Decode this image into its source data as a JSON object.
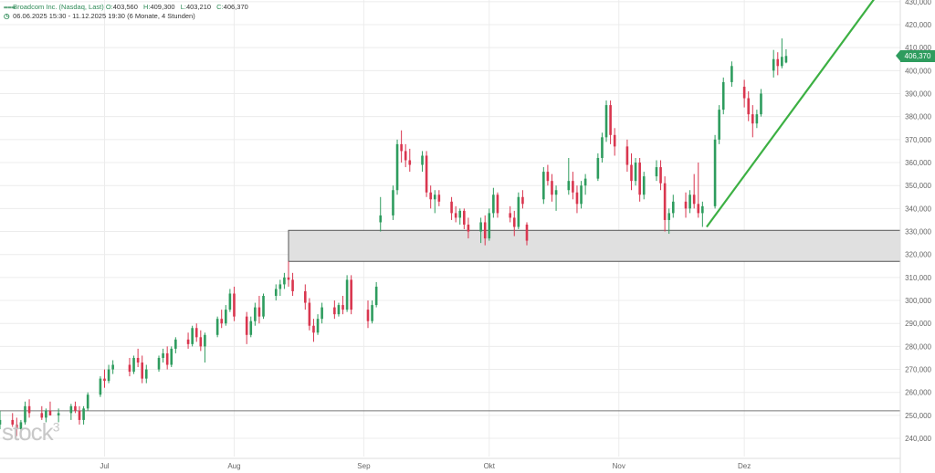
{
  "header": {
    "symbol_icon": "chart-symbol-icon",
    "instrument": "Broadcom Inc. (Nasdaq, Last)",
    "open_label": "O:",
    "open": "403,560",
    "high_label": "H:",
    "high": "409,300",
    "low_label": "L:",
    "low": "403,210",
    "close_label": "C:",
    "close": "406,370",
    "clock_icon": "clock-icon",
    "range": "06.06.2025 15:30 - 11.12.2025 19:30",
    "interval": "(6 Monate, 4 Stunden)"
  },
  "watermark": {
    "text": "stock",
    "sup": "3"
  },
  "price_badge": "406,370",
  "colors": {
    "up": "#2e9c5e",
    "down": "#d9364f",
    "trend": "#3cb043",
    "zone_fill": "#e0e0e0",
    "zone_stroke": "#555555",
    "grid": "#ececec"
  },
  "chart_data": {
    "type": "candlestick",
    "ylim": [
      235,
      430
    ],
    "y_ticks": [
      {
        "v": 240,
        "label": "240,000"
      },
      {
        "v": 250,
        "label": "250,000"
      },
      {
        "v": 260,
        "label": "260,000"
      },
      {
        "v": 270,
        "label": "270,000"
      },
      {
        "v": 280,
        "label": "280,000"
      },
      {
        "v": 290,
        "label": "290,000"
      },
      {
        "v": 300,
        "label": "300,000"
      },
      {
        "v": 310,
        "label": "310,000"
      },
      {
        "v": 320,
        "label": "320,000"
      },
      {
        "v": 330,
        "label": "330,000"
      },
      {
        "v": 340,
        "label": "340,000"
      },
      {
        "v": 350,
        "label": "350,000"
      },
      {
        "v": 360,
        "label": "360,000"
      },
      {
        "v": 370,
        "label": "370,000"
      },
      {
        "v": 380,
        "label": "380,000"
      },
      {
        "v": 390,
        "label": "390,000"
      },
      {
        "v": 400,
        "label": "400,000"
      },
      {
        "v": 410,
        "label": "410,000"
      },
      {
        "v": 420,
        "label": "420,000"
      },
      {
        "v": 430,
        "label": "430,000"
      }
    ],
    "x_ticks": [
      {
        "label": "Jul",
        "date": "2025-07-01"
      },
      {
        "label": "Aug",
        "date": "2025-08-01"
      },
      {
        "label": "Sep",
        "date": "2025-09-01"
      },
      {
        "label": "Okt",
        "date": "2025-10-01"
      },
      {
        "label": "Nov",
        "date": "2025-11-01"
      },
      {
        "label": "Dez",
        "date": "2025-12-01"
      }
    ],
    "x_range": [
      "2025-06-06",
      "2026-01-06"
    ],
    "last_price": 406.37,
    "zone": {
      "from": "2025-08-14",
      "to_right_edge": true,
      "y_low": 317,
      "y_high": 330.5
    },
    "support_line": {
      "y": 252
    },
    "trend_line": {
      "from": {
        "date": "2025-11-22",
        "y": 332
      },
      "to": {
        "date": "2026-01-01",
        "y": 431
      }
    },
    "candles": [
      {
        "d": "2025-06-06",
        "o": 246,
        "h": 252,
        "l": 244,
        "c": 248
      },
      {
        "d": "2025-06-09",
        "o": 248,
        "h": 251,
        "l": 245,
        "c": 246
      },
      {
        "d": "2025-06-10",
        "o": 246,
        "h": 249,
        "l": 241,
        "c": 244
      },
      {
        "d": "2025-06-11",
        "o": 244,
        "h": 248,
        "l": 241,
        "c": 247
      },
      {
        "d": "2025-06-12",
        "o": 247,
        "h": 256,
        "l": 246,
        "c": 254
      },
      {
        "d": "2025-06-13",
        "o": 254,
        "h": 257,
        "l": 249,
        "c": 251
      },
      {
        "d": "2025-06-16",
        "o": 251,
        "h": 254,
        "l": 248,
        "c": 249
      },
      {
        "d": "2025-06-17",
        "o": 249,
        "h": 253,
        "l": 247,
        "c": 252
      },
      {
        "d": "2025-06-18",
        "o": 252,
        "h": 256,
        "l": 250,
        "c": 250
      },
      {
        "d": "2025-06-20",
        "o": 250,
        "h": 253,
        "l": 247,
        "c": 251
      },
      {
        "d": "2025-06-23",
        "o": 251,
        "h": 255,
        "l": 248,
        "c": 254
      },
      {
        "d": "2025-06-24",
        "o": 254,
        "h": 256,
        "l": 251,
        "c": 252
      },
      {
        "d": "2025-06-25",
        "o": 252,
        "h": 254,
        "l": 246,
        "c": 248
      },
      {
        "d": "2025-06-26",
        "o": 248,
        "h": 254,
        "l": 246,
        "c": 253
      },
      {
        "d": "2025-06-27",
        "o": 253,
        "h": 260,
        "l": 252,
        "c": 259
      },
      {
        "d": "2025-06-30",
        "o": 259,
        "h": 267,
        "l": 258,
        "c": 266
      },
      {
        "d": "2025-07-01",
        "o": 266,
        "h": 270,
        "l": 262,
        "c": 265
      },
      {
        "d": "2025-07-02",
        "o": 265,
        "h": 272,
        "l": 264,
        "c": 270
      },
      {
        "d": "2025-07-03",
        "o": 270,
        "h": 274,
        "l": 268,
        "c": 272
      },
      {
        "d": "2025-07-07",
        "o": 272,
        "h": 275,
        "l": 267,
        "c": 269
      },
      {
        "d": "2025-07-08",
        "o": 269,
        "h": 276,
        "l": 268,
        "c": 275
      },
      {
        "d": "2025-07-09",
        "o": 275,
        "h": 279,
        "l": 271,
        "c": 273
      },
      {
        "d": "2025-07-10",
        "o": 273,
        "h": 276,
        "l": 264,
        "c": 266
      },
      {
        "d": "2025-07-11",
        "o": 266,
        "h": 272,
        "l": 264,
        "c": 270
      },
      {
        "d": "2025-07-14",
        "o": 270,
        "h": 276,
        "l": 269,
        "c": 275
      },
      {
        "d": "2025-07-15",
        "o": 275,
        "h": 279,
        "l": 273,
        "c": 277
      },
      {
        "d": "2025-07-16",
        "o": 277,
        "h": 280,
        "l": 270,
        "c": 272
      },
      {
        "d": "2025-07-17",
        "o": 272,
        "h": 280,
        "l": 271,
        "c": 279
      },
      {
        "d": "2025-07-18",
        "o": 279,
        "h": 284,
        "l": 277,
        "c": 283
      },
      {
        "d": "2025-07-21",
        "o": 283,
        "h": 286,
        "l": 279,
        "c": 281
      },
      {
        "d": "2025-07-22",
        "o": 281,
        "h": 289,
        "l": 280,
        "c": 288
      },
      {
        "d": "2025-07-23",
        "o": 288,
        "h": 290,
        "l": 282,
        "c": 284
      },
      {
        "d": "2025-07-24",
        "o": 284,
        "h": 287,
        "l": 278,
        "c": 280
      },
      {
        "d": "2025-07-25",
        "o": 280,
        "h": 286,
        "l": 273,
        "c": 285
      },
      {
        "d": "2025-07-28",
        "o": 285,
        "h": 293,
        "l": 284,
        "c": 292
      },
      {
        "d": "2025-07-29",
        "o": 292,
        "h": 296,
        "l": 288,
        "c": 290
      },
      {
        "d": "2025-07-30",
        "o": 290,
        "h": 298,
        "l": 289,
        "c": 296
      },
      {
        "d": "2025-07-31",
        "o": 296,
        "h": 305,
        "l": 295,
        "c": 303
      },
      {
        "d": "2025-08-01",
        "o": 303,
        "h": 306,
        "l": 291,
        "c": 293
      },
      {
        "d": "2025-08-04",
        "o": 293,
        "h": 295,
        "l": 281,
        "c": 285
      },
      {
        "d": "2025-08-05",
        "o": 285,
        "h": 293,
        "l": 284,
        "c": 291
      },
      {
        "d": "2025-08-06",
        "o": 291,
        "h": 299,
        "l": 289,
        "c": 297
      },
      {
        "d": "2025-08-07",
        "o": 297,
        "h": 302,
        "l": 290,
        "c": 293
      },
      {
        "d": "2025-08-08",
        "o": 293,
        "h": 303,
        "l": 292,
        "c": 302
      },
      {
        "d": "2025-08-11",
        "o": 302,
        "h": 307,
        "l": 300,
        "c": 305
      },
      {
        "d": "2025-08-12",
        "o": 305,
        "h": 309,
        "l": 302,
        "c": 307
      },
      {
        "d": "2025-08-13",
        "o": 307,
        "h": 312,
        "l": 305,
        "c": 310
      },
      {
        "d": "2025-08-14",
        "o": 310,
        "h": 317,
        "l": 306,
        "c": 309
      },
      {
        "d": "2025-08-15",
        "o": 309,
        "h": 312,
        "l": 302,
        "c": 304
      },
      {
        "d": "2025-08-18",
        "o": 304,
        "h": 307,
        "l": 296,
        "c": 299
      },
      {
        "d": "2025-08-19",
        "o": 299,
        "h": 301,
        "l": 287,
        "c": 289
      },
      {
        "d": "2025-08-20",
        "o": 289,
        "h": 292,
        "l": 282,
        "c": 286
      },
      {
        "d": "2025-08-21",
        "o": 286,
        "h": 294,
        "l": 285,
        "c": 292
      },
      {
        "d": "2025-08-22",
        "o": 292,
        "h": 299,
        "l": 290,
        "c": 297
      },
      {
        "d": "2025-08-25",
        "o": 297,
        "h": 300,
        "l": 292,
        "c": 294
      },
      {
        "d": "2025-08-26",
        "o": 294,
        "h": 299,
        "l": 293,
        "c": 298
      },
      {
        "d": "2025-08-27",
        "o": 298,
        "h": 302,
        "l": 294,
        "c": 296
      },
      {
        "d": "2025-08-28",
        "o": 296,
        "h": 311,
        "l": 295,
        "c": 309
      },
      {
        "d": "2025-08-29",
        "o": 309,
        "h": 311,
        "l": 294,
        "c": 296
      },
      {
        "d": "2025-09-02",
        "o": 296,
        "h": 300,
        "l": 288,
        "c": 291
      },
      {
        "d": "2025-09-03",
        "o": 291,
        "h": 300,
        "l": 290,
        "c": 298
      },
      {
        "d": "2025-09-04",
        "o": 298,
        "h": 308,
        "l": 297,
        "c": 306
      },
      {
        "d": "2025-09-05",
        "o": 334,
        "h": 345,
        "l": 330,
        "c": 337
      },
      {
        "d": "2025-09-08",
        "o": 337,
        "h": 350,
        "l": 335,
        "c": 348
      },
      {
        "d": "2025-09-09",
        "o": 348,
        "h": 370,
        "l": 346,
        "c": 368
      },
      {
        "d": "2025-09-10",
        "o": 368,
        "h": 374,
        "l": 360,
        "c": 365
      },
      {
        "d": "2025-09-11",
        "o": 365,
        "h": 368,
        "l": 358,
        "c": 361
      },
      {
        "d": "2025-09-12",
        "o": 361,
        "h": 366,
        "l": 356,
        "c": 359
      },
      {
        "d": "2025-09-15",
        "o": 359,
        "h": 365,
        "l": 356,
        "c": 363
      },
      {
        "d": "2025-09-16",
        "o": 363,
        "h": 365,
        "l": 345,
        "c": 347
      },
      {
        "d": "2025-09-17",
        "o": 347,
        "h": 350,
        "l": 340,
        "c": 344
      },
      {
        "d": "2025-09-18",
        "o": 344,
        "h": 348,
        "l": 338,
        "c": 346
      },
      {
        "d": "2025-09-19",
        "o": 346,
        "h": 348,
        "l": 341,
        "c": 343
      },
      {
        "d": "2025-09-22",
        "o": 343,
        "h": 345,
        "l": 335,
        "c": 338
      },
      {
        "d": "2025-09-23",
        "o": 338,
        "h": 341,
        "l": 334,
        "c": 336
      },
      {
        "d": "2025-09-24",
        "o": 336,
        "h": 340,
        "l": 333,
        "c": 339
      },
      {
        "d": "2025-09-25",
        "o": 339,
        "h": 340,
        "l": 331,
        "c": 333
      },
      {
        "d": "2025-09-26",
        "o": 333,
        "h": 336,
        "l": 327,
        "c": 330
      },
      {
        "d": "2025-09-29",
        "o": 330,
        "h": 336,
        "l": 325,
        "c": 334
      },
      {
        "d": "2025-09-30",
        "o": 334,
        "h": 337,
        "l": 324,
        "c": 327
      },
      {
        "d": "2025-10-01",
        "o": 327,
        "h": 340,
        "l": 326,
        "c": 338
      },
      {
        "d": "2025-10-02",
        "o": 338,
        "h": 349,
        "l": 336,
        "c": 346
      },
      {
        "d": "2025-10-03",
        "o": 346,
        "h": 347,
        "l": 336,
        "c": 338
      },
      {
        "d": "2025-10-06",
        "o": 338,
        "h": 341,
        "l": 334,
        "c": 336
      },
      {
        "d": "2025-10-07",
        "o": 336,
        "h": 339,
        "l": 328,
        "c": 332
      },
      {
        "d": "2025-10-08",
        "o": 332,
        "h": 347,
        "l": 331,
        "c": 345
      },
      {
        "d": "2025-10-09",
        "o": 345,
        "h": 348,
        "l": 340,
        "c": 342
      },
      {
        "d": "2025-10-10",
        "o": 333,
        "h": 334,
        "l": 324,
        "c": 326
      },
      {
        "d": "2025-10-14",
        "o": 344,
        "h": 358,
        "l": 342,
        "c": 356
      },
      {
        "d": "2025-10-15",
        "o": 356,
        "h": 359,
        "l": 350,
        "c": 352
      },
      {
        "d": "2025-10-16",
        "o": 352,
        "h": 355,
        "l": 343,
        "c": 346
      },
      {
        "d": "2025-10-17",
        "o": 346,
        "h": 350,
        "l": 339,
        "c": 348
      },
      {
        "d": "2025-10-20",
        "o": 348,
        "h": 362,
        "l": 346,
        "c": 352
      },
      {
        "d": "2025-10-21",
        "o": 352,
        "h": 356,
        "l": 344,
        "c": 347
      },
      {
        "d": "2025-10-22",
        "o": 347,
        "h": 350,
        "l": 338,
        "c": 342
      },
      {
        "d": "2025-10-23",
        "o": 342,
        "h": 352,
        "l": 340,
        "c": 350
      },
      {
        "d": "2025-10-24",
        "o": 350,
        "h": 355,
        "l": 346,
        "c": 353
      },
      {
        "d": "2025-10-27",
        "o": 353,
        "h": 364,
        "l": 352,
        "c": 362
      },
      {
        "d": "2025-10-28",
        "o": 362,
        "h": 373,
        "l": 360,
        "c": 371
      },
      {
        "d": "2025-10-29",
        "o": 371,
        "h": 387,
        "l": 369,
        "c": 385
      },
      {
        "d": "2025-10-30",
        "o": 385,
        "h": 387,
        "l": 368,
        "c": 372
      },
      {
        "d": "2025-10-31",
        "o": 372,
        "h": 375,
        "l": 363,
        "c": 367
      },
      {
        "d": "2025-11-03",
        "o": 367,
        "h": 370,
        "l": 356,
        "c": 359
      },
      {
        "d": "2025-11-04",
        "o": 359,
        "h": 364,
        "l": 348,
        "c": 352
      },
      {
        "d": "2025-11-05",
        "o": 352,
        "h": 362,
        "l": 350,
        "c": 360
      },
      {
        "d": "2025-11-06",
        "o": 360,
        "h": 362,
        "l": 343,
        "c": 346
      },
      {
        "d": "2025-11-07",
        "o": 346,
        "h": 356,
        "l": 344,
        "c": 354
      },
      {
        "d": "2025-11-10",
        "o": 354,
        "h": 361,
        "l": 352,
        "c": 358
      },
      {
        "d": "2025-11-11",
        "o": 358,
        "h": 361,
        "l": 348,
        "c": 351
      },
      {
        "d": "2025-11-12",
        "o": 351,
        "h": 354,
        "l": 330,
        "c": 335
      },
      {
        "d": "2025-11-13",
        "o": 335,
        "h": 340,
        "l": 329,
        "c": 338
      },
      {
        "d": "2025-11-14",
        "o": 338,
        "h": 346,
        "l": 336,
        "c": 343
      },
      {
        "d": "2025-11-17",
        "o": 343,
        "h": 347,
        "l": 336,
        "c": 340
      },
      {
        "d": "2025-11-18",
        "o": 340,
        "h": 348,
        "l": 338,
        "c": 346
      },
      {
        "d": "2025-11-19",
        "o": 346,
        "h": 355,
        "l": 340,
        "c": 342
      },
      {
        "d": "2025-11-20",
        "o": 342,
        "h": 360,
        "l": 336,
        "c": 338
      },
      {
        "d": "2025-11-21",
        "o": 338,
        "h": 343,
        "l": 332,
        "c": 341
      },
      {
        "d": "2025-11-24",
        "o": 341,
        "h": 372,
        "l": 340,
        "c": 370
      },
      {
        "d": "2025-11-25",
        "o": 370,
        "h": 385,
        "l": 368,
        "c": 383
      },
      {
        "d": "2025-11-26",
        "o": 383,
        "h": 397,
        "l": 381,
        "c": 395
      },
      {
        "d": "2025-11-28",
        "o": 395,
        "h": 404,
        "l": 393,
        "c": 402
      },
      {
        "d": "2025-12-01",
        "o": 393,
        "h": 396,
        "l": 384,
        "c": 388
      },
      {
        "d": "2025-12-02",
        "o": 388,
        "h": 391,
        "l": 378,
        "c": 381
      },
      {
        "d": "2025-12-03",
        "o": 381,
        "h": 385,
        "l": 371,
        "c": 377
      },
      {
        "d": "2025-12-04",
        "o": 377,
        "h": 383,
        "l": 375,
        "c": 381
      },
      {
        "d": "2025-12-05",
        "o": 381,
        "h": 392,
        "l": 380,
        "c": 390
      },
      {
        "d": "2025-12-08",
        "o": 400,
        "h": 409,
        "l": 397,
        "c": 405
      },
      {
        "d": "2025-12-09",
        "o": 405,
        "h": 408,
        "l": 398,
        "c": 402
      },
      {
        "d": "2025-12-10",
        "o": 402,
        "h": 414,
        "l": 401,
        "c": 406
      },
      {
        "d": "2025-12-11",
        "o": 403.56,
        "h": 409.3,
        "l": 403.21,
        "c": 406.37
      }
    ]
  }
}
